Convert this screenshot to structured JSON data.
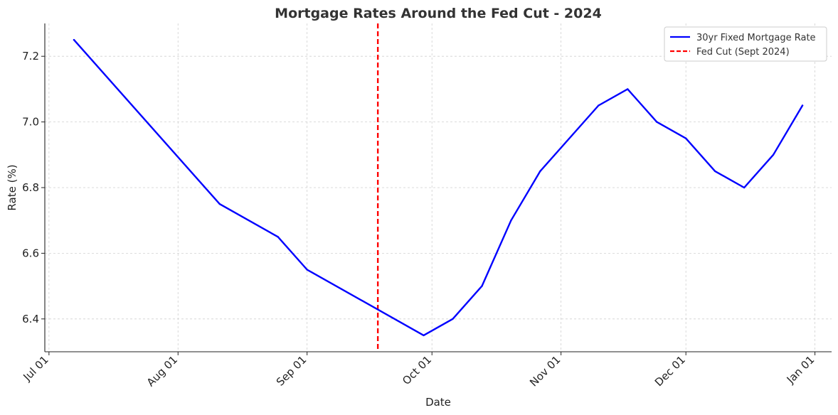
{
  "chart_data": {
    "type": "line",
    "title": "Mortgage Rates Around the Fed Cut - 2024",
    "xlabel": "Date",
    "ylabel": "Rate (%)",
    "xlim": [
      "2024-06-30",
      "2025-01-05"
    ],
    "ylim": [
      6.3,
      7.3
    ],
    "grid": true,
    "legend_position": "top-right",
    "x_ticks": [
      {
        "date": "2024-07-01",
        "label": "Jul 01"
      },
      {
        "date": "2024-08-01",
        "label": "Aug 01"
      },
      {
        "date": "2024-09-01",
        "label": "Sep 01"
      },
      {
        "date": "2024-10-01",
        "label": "Oct 01"
      },
      {
        "date": "2024-11-01",
        "label": "Nov 01"
      },
      {
        "date": "2024-12-01",
        "label": "Dec 01"
      },
      {
        "date": "2025-01-01",
        "label": "Jan 01"
      }
    ],
    "y_ticks": [
      {
        "value": 6.4,
        "label": "6.4"
      },
      {
        "value": 6.6,
        "label": "6.6"
      },
      {
        "value": 6.8,
        "label": "6.8"
      },
      {
        "value": 7.0,
        "label": "7.0"
      },
      {
        "value": 7.2,
        "label": "7.2"
      }
    ],
    "series": [
      {
        "name": "30yr Fixed Mortgage Rate",
        "color": "#0000ff",
        "style": "solid",
        "points": [
          {
            "x": "2024-07-07",
            "y": 7.25
          },
          {
            "x": "2024-08-11",
            "y": 6.75
          },
          {
            "x": "2024-08-25",
            "y": 6.65
          },
          {
            "x": "2024-09-01",
            "y": 6.55
          },
          {
            "x": "2024-09-29",
            "y": 6.35
          },
          {
            "x": "2024-10-06",
            "y": 6.4
          },
          {
            "x": "2024-10-13",
            "y": 6.5
          },
          {
            "x": "2024-10-20",
            "y": 6.7
          },
          {
            "x": "2024-10-27",
            "y": 6.85
          },
          {
            "x": "2024-11-10",
            "y": 7.05
          },
          {
            "x": "2024-11-17",
            "y": 7.1
          },
          {
            "x": "2024-11-24",
            "y": 7.0
          },
          {
            "x": "2024-12-01",
            "y": 6.95
          },
          {
            "x": "2024-12-08",
            "y": 6.85
          },
          {
            "x": "2024-12-15",
            "y": 6.8
          },
          {
            "x": "2024-12-22",
            "y": 6.9
          },
          {
            "x": "2024-12-29",
            "y": 7.05
          }
        ]
      }
    ],
    "vlines": [
      {
        "name": "Fed Cut (Sept 2024)",
        "x": "2024-09-18",
        "color": "#ff0000",
        "style": "dashed"
      }
    ]
  }
}
